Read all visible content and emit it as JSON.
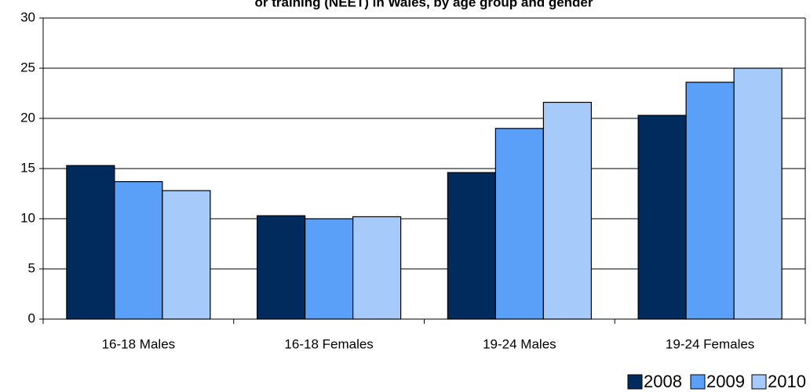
{
  "chart_data": {
    "type": "bar",
    "title": "or training (NEET) in Wales, by age group and gender",
    "categories": [
      "16-18 Males",
      "16-18 Females",
      "19-24 Males",
      "19-24 Females"
    ],
    "series": [
      {
        "name": "2008",
        "color": "#002b5c",
        "values": [
          15.3,
          10.3,
          14.6,
          20.3
        ]
      },
      {
        "name": "2009",
        "color": "#5aa0f8",
        "values": [
          13.7,
          10.0,
          19.0,
          23.6
        ]
      },
      {
        "name": "2010",
        "color": "#a6cbfb",
        "values": [
          12.8,
          10.2,
          21.6,
          25.0
        ]
      }
    ],
    "ylim": [
      0,
      30
    ],
    "yticks": [
      0,
      5,
      10,
      15,
      20,
      25,
      30
    ],
    "grid": true,
    "legend": "bottom-right"
  }
}
